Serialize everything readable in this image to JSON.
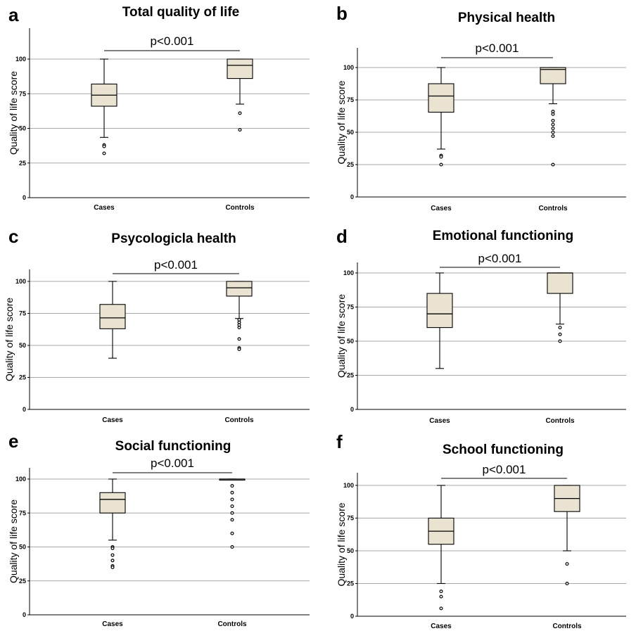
{
  "chart_data": [
    {
      "panel": "a",
      "title": "Total quality of life",
      "type": "box",
      "ylabel": "Quality of life score",
      "ylim": [
        0,
        110
      ],
      "yticks": [
        "0",
        "25",
        "50",
        "75",
        "100"
      ],
      "grid": true,
      "p_value": "p<0.001",
      "categories": [
        "Cases",
        "Controls"
      ],
      "boxes": [
        {
          "category": "Cases",
          "min": 43.5,
          "q1": 66,
          "median": 74,
          "q3": 82,
          "max": 100,
          "outliers": [
            38,
            37,
            32
          ]
        },
        {
          "category": "Controls",
          "min": 67.5,
          "q1": 86,
          "median": 95.5,
          "q3": 100,
          "max": 100,
          "outliers": [
            61,
            49
          ]
        }
      ]
    },
    {
      "panel": "b",
      "title": "Physical health",
      "type": "box",
      "ylabel": "Quality of life score",
      "ylim": [
        0,
        110
      ],
      "yticks": [
        "0",
        "25",
        "50",
        "75",
        "100"
      ],
      "grid": true,
      "p_value": "p<0.001",
      "categories": [
        "Cases",
        "Controls"
      ],
      "boxes": [
        {
          "category": "Cases",
          "min": 37,
          "q1": 65.5,
          "median": 78,
          "q3": 87.5,
          "max": 100,
          "outliers": [
            32,
            31,
            25
          ]
        },
        {
          "category": "Controls",
          "min": 72,
          "q1": 87.5,
          "median": 98.5,
          "q3": 100,
          "max": 100,
          "outliers": [
            66,
            64,
            59,
            56,
            53,
            50,
            47,
            25
          ]
        }
      ]
    },
    {
      "panel": "c",
      "title": "Psycologicla health",
      "type": "box",
      "ylabel": "Quality of life score",
      "ylim": [
        0,
        110
      ],
      "yticks": [
        "0",
        "25",
        "50",
        "75",
        "100"
      ],
      "grid": true,
      "p_value": "p<0.001",
      "categories": [
        "Cases",
        "Controls"
      ],
      "boxes": [
        {
          "category": "Cases",
          "min": 40,
          "q1": 63,
          "median": 71.5,
          "q3": 82,
          "max": 100,
          "outliers": []
        },
        {
          "category": "Controls",
          "min": 71,
          "q1": 88.5,
          "median": 95,
          "q3": 100,
          "max": 100,
          "outliers": [
            70,
            68,
            66,
            64,
            55,
            48,
            47
          ]
        }
      ]
    },
    {
      "panel": "d",
      "title": "Emotional functioning",
      "type": "box",
      "ylabel": "Quality of life score",
      "ylim": [
        0,
        110
      ],
      "yticks": [
        "0",
        "25",
        "50",
        "75",
        "100"
      ],
      "grid": true,
      "p_value": "p<0.001",
      "categories": [
        "Cases",
        "Controls"
      ],
      "boxes": [
        {
          "category": "Cases",
          "min": 30,
          "q1": 60,
          "median": 70,
          "q3": 85,
          "max": 100,
          "outliers": []
        },
        {
          "category": "Controls",
          "min": 62.5,
          "q1": 85,
          "median": 100,
          "q3": 100,
          "max": 100,
          "outliers": [
            60,
            55,
            50
          ]
        }
      ]
    },
    {
      "panel": "e",
      "title": "Social functioning",
      "type": "box",
      "ylabel": "Quality of life score",
      "ylim": [
        0,
        110
      ],
      "yticks": [
        "0",
        "25",
        "50",
        "75",
        "100"
      ],
      "grid": true,
      "p_value": "p<0.001",
      "categories": [
        "Cases",
        "Controls"
      ],
      "boxes": [
        {
          "category": "Cases",
          "min": 55,
          "q1": 75,
          "median": 85,
          "q3": 90,
          "max": 100,
          "outliers": [
            50,
            49,
            44,
            40,
            36,
            35
          ]
        },
        {
          "category": "Controls",
          "min": 100,
          "q1": 100,
          "median": 100,
          "q3": 100,
          "max": 100,
          "outliers": [
            95,
            90,
            85,
            80,
            75,
            70,
            60,
            50
          ]
        }
      ]
    },
    {
      "panel": "f",
      "title": "School functioning",
      "type": "box",
      "ylabel": "Quality of life score",
      "ylim": [
        0,
        110
      ],
      "yticks": [
        "0",
        "25",
        "50",
        "75",
        "100"
      ],
      "grid": true,
      "p_value": "p<0.001",
      "categories": [
        "Cases",
        "Controls"
      ],
      "boxes": [
        {
          "category": "Cases",
          "min": 25,
          "q1": 55,
          "median": 65,
          "q3": 75,
          "max": 100,
          "outliers": [
            19,
            15,
            6
          ]
        },
        {
          "category": "Controls",
          "min": 50,
          "q1": 80,
          "median": 90,
          "q3": 100,
          "max": 100,
          "outliers": [
            40,
            25
          ]
        }
      ]
    }
  ]
}
